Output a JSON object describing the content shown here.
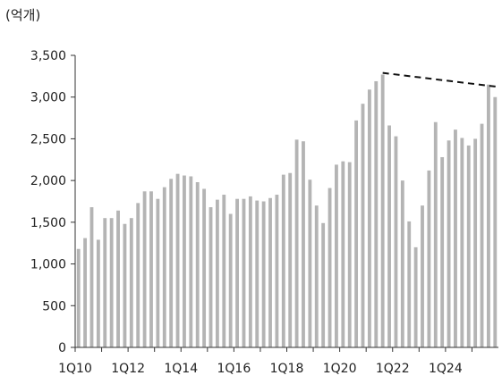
{
  "chart_data": {
    "type": "bar",
    "unit_label": "(억개)",
    "title": "",
    "xlabel": "",
    "ylabel": "",
    "ylim": [
      0,
      3500
    ],
    "yticks": [
      0,
      500,
      1000,
      1500,
      2000,
      2500,
      3000,
      3500
    ],
    "ytick_labels": [
      "0",
      "500",
      "1,000",
      "1,500",
      "2,000",
      "2,500",
      "3,000",
      "3,500"
    ],
    "xtick_labels": [
      "1Q10",
      "1Q12",
      "1Q14",
      "1Q16",
      "1Q18",
      "1Q20",
      "1Q22",
      "1Q24"
    ],
    "categories": [
      "1Q10",
      "2Q10",
      "3Q10",
      "4Q10",
      "1Q11",
      "2Q11",
      "3Q11",
      "4Q11",
      "1Q12",
      "2Q12",
      "3Q12",
      "4Q12",
      "1Q13",
      "2Q13",
      "3Q13",
      "4Q13",
      "1Q14",
      "2Q14",
      "3Q14",
      "4Q14",
      "1Q15",
      "2Q15",
      "3Q15",
      "4Q15",
      "1Q16",
      "2Q16",
      "3Q16",
      "4Q16",
      "1Q17",
      "2Q17",
      "3Q17",
      "4Q17",
      "1Q18",
      "2Q18",
      "3Q18",
      "4Q18",
      "1Q19",
      "2Q19",
      "3Q19",
      "4Q19",
      "1Q20",
      "2Q20",
      "3Q20",
      "4Q20",
      "1Q21",
      "2Q21",
      "3Q21",
      "4Q21",
      "1Q22",
      "2Q22",
      "3Q22",
      "4Q22",
      "1Q23",
      "2Q23",
      "3Q23",
      "4Q23",
      "1Q24",
      "2Q24",
      "3Q24",
      "4Q24",
      "1Q25",
      "2Q25",
      "3Q25",
      "4Q25"
    ],
    "values": [
      1180,
      1310,
      1680,
      1290,
      1550,
      1550,
      1640,
      1480,
      1550,
      1730,
      1870,
      1870,
      1780,
      1920,
      2020,
      2080,
      2060,
      2050,
      1980,
      1900,
      1680,
      1770,
      1830,
      1600,
      1780,
      1780,
      1810,
      1760,
      1750,
      1790,
      1830,
      2070,
      2090,
      2490,
      2470,
      2010,
      1700,
      1490,
      1910,
      2190,
      2230,
      2220,
      2720,
      2920,
      3090,
      3190,
      3270,
      2660,
      2530,
      2000,
      1510,
      1200,
      1700,
      2120,
      2700,
      2280,
      2480,
      2610,
      2510,
      2420,
      2500,
      2680,
      3150,
      3000
    ],
    "bar_color": "#b4b4b4",
    "annotations": [
      {
        "type": "dashed-trend-line",
        "from": {
          "x": "3Q21",
          "y": 3290
        },
        "to": {
          "x": "4Q25",
          "y": 3120
        },
        "color": "#111111"
      }
    ],
    "grid": false,
    "legend": "none"
  }
}
